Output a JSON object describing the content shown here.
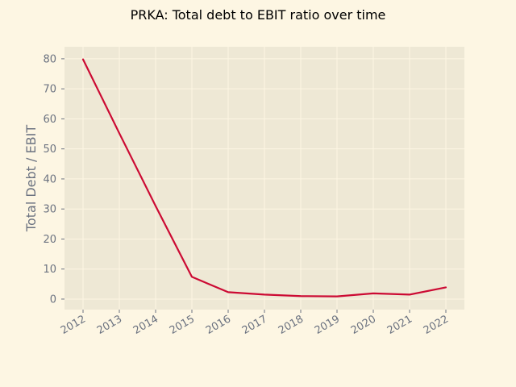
{
  "chart_data": {
    "type": "line",
    "title": "PRKA: Total debt to EBIT ratio over time",
    "xlabel": "",
    "ylabel": "Total Debt / EBIT",
    "x": [
      "2012",
      "2013",
      "2014",
      "2015",
      "2016",
      "2017",
      "2018",
      "2019",
      "2020",
      "2021",
      "2022"
    ],
    "series": [
      {
        "values": [
          79.8,
          55.2,
          31.0,
          7.4,
          2.3,
          1.5,
          1.0,
          0.9,
          1.9,
          1.5,
          3.9
        ]
      }
    ],
    "yticks": [
      0,
      10,
      20,
      30,
      40,
      50,
      60,
      70,
      80
    ],
    "ylim": [
      -3.5,
      84
    ],
    "grid": true,
    "colors": {
      "figure_bg": "#fdf6e3",
      "plot_bg": "#eee8d5",
      "grid": "#fdf6e3",
      "line": "#cc0a33",
      "tick_text": "#6b7280"
    }
  }
}
